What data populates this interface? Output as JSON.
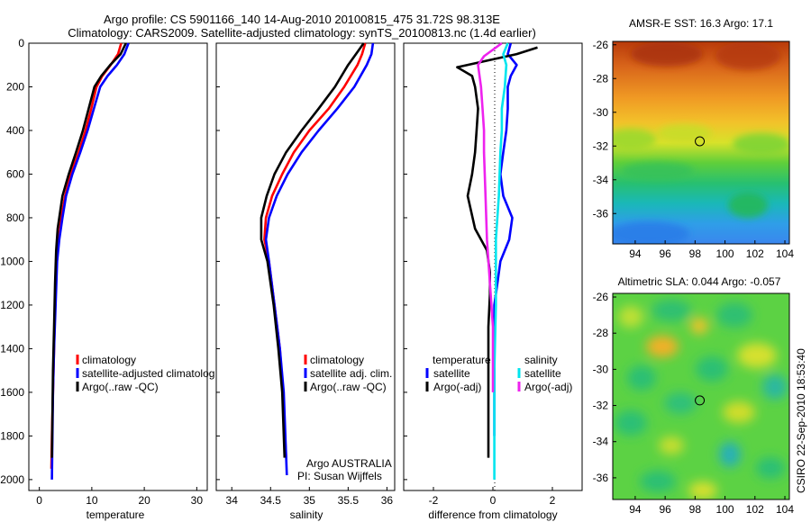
{
  "header": {
    "title_line1": "Argo profile: CS 5901166_140 14-Aug-2010 20100815_475 31.72S 98.313E",
    "title_line2": "Climatology: CARS2009. Satellite-adjusted climatology: synTS_20100813.nc (1.4d earlier)"
  },
  "colors": {
    "climatology": "#ff0000",
    "satellite": "#0000ff",
    "argo": "#000000",
    "salinity_satellite": "#00e5ee",
    "salinity_argo": "#ee22ee"
  },
  "chart_data": [
    {
      "type": "line",
      "name": "temperature-profile",
      "xlabel": "temperature",
      "ylabel": "",
      "xlim": [
        -2,
        32
      ],
      "ylim": [
        2050,
        0
      ],
      "xticks": [
        0,
        10,
        20,
        30
      ],
      "yticks": [
        0,
        200,
        400,
        600,
        800,
        1000,
        1200,
        1400,
        1600,
        1800,
        2000
      ],
      "legend": [
        "climatology",
        "satellite-adjusted climatolog",
        "Argo(..raw -QC)"
      ],
      "series": [
        {
          "name": "climatology",
          "color": "#ff0000",
          "x": [
            15.6,
            15.0,
            13.6,
            12.0,
            10.9,
            9.9,
            8.8,
            7.5,
            6.0,
            4.9,
            4.2,
            3.7,
            3.3,
            3.0,
            2.8,
            2.6,
            2.4,
            2.3
          ],
          "y": [
            0,
            50,
            100,
            150,
            200,
            300,
            400,
            500,
            600,
            700,
            800,
            900,
            1000,
            1200,
            1400,
            1600,
            1800,
            1950
          ]
        },
        {
          "name": "satellite",
          "color": "#0000ff",
          "x": [
            17.0,
            16.2,
            14.8,
            13.0,
            11.6,
            10.4,
            9.2,
            7.8,
            6.3,
            5.1,
            4.4,
            3.8,
            3.4,
            3.1,
            2.8,
            2.6,
            2.5,
            2.4
          ],
          "y": [
            0,
            50,
            100,
            150,
            200,
            300,
            400,
            500,
            600,
            700,
            800,
            900,
            1000,
            1200,
            1400,
            1600,
            1800,
            2000
          ]
        },
        {
          "name": "argo",
          "color": "#000000",
          "x": [
            16.5,
            15.5,
            13.5,
            11.8,
            10.5,
            9.4,
            8.3,
            7.0,
            5.6,
            4.4,
            3.5,
            3.2,
            3.0,
            2.8,
            2.6,
            2.5,
            2.4
          ],
          "y": [
            0,
            50,
            100,
            150,
            200,
            300,
            400,
            500,
            600,
            700,
            850,
            950,
            1100,
            1300,
            1500,
            1700,
            1900
          ]
        }
      ]
    },
    {
      "type": "line",
      "name": "salinity-profile",
      "xlabel": "salinity",
      "ylabel": "",
      "xlim": [
        33.8,
        36.1
      ],
      "ylim": [
        2050,
        0
      ],
      "xticks": [
        34,
        34.5,
        35,
        35.5,
        36
      ],
      "legend": [
        "climatology",
        "satellite adj. clim.",
        "Argo(..raw -QC)"
      ],
      "annotation": [
        "Argo AUSTRALIA",
        "PI: Susan Wijffels"
      ],
      "series": [
        {
          "name": "climatology",
          "color": "#ff0000",
          "x": [
            35.72,
            35.68,
            35.62,
            35.45,
            35.25,
            35.0,
            34.8,
            34.65,
            34.52,
            34.44,
            34.42,
            34.48,
            34.55,
            34.62,
            34.66,
            34.7
          ],
          "y": [
            0,
            50,
            100,
            200,
            300,
            400,
            500,
            600,
            700,
            800,
            900,
            1000,
            1200,
            1400,
            1600,
            1900
          ]
        },
        {
          "name": "satellite",
          "color": "#0000ff",
          "x": [
            35.82,
            35.8,
            35.74,
            35.58,
            35.36,
            35.12,
            34.9,
            34.72,
            34.58,
            34.48,
            34.44,
            34.48,
            34.55,
            34.62,
            34.67,
            34.71
          ],
          "y": [
            0,
            50,
            100,
            200,
            300,
            400,
            500,
            600,
            700,
            800,
            900,
            1000,
            1200,
            1400,
            1600,
            1980
          ]
        },
        {
          "name": "argo",
          "color": "#000000",
          "x": [
            35.7,
            35.6,
            35.5,
            35.33,
            35.12,
            34.9,
            34.7,
            34.55,
            34.45,
            34.38,
            34.38,
            34.46,
            34.54,
            34.6,
            34.65,
            34.68
          ],
          "y": [
            0,
            50,
            100,
            200,
            300,
            400,
            500,
            600,
            700,
            800,
            900,
            1000,
            1200,
            1400,
            1600,
            1900
          ]
        }
      ]
    },
    {
      "type": "line",
      "name": "difference-profile",
      "xlabel": "difference from climatology",
      "ylabel": "",
      "xlim": [
        -3,
        3
      ],
      "ylim": [
        2050,
        0
      ],
      "xticks": [
        -2,
        0,
        2
      ],
      "legend_titles": [
        "temperature",
        "salinity"
      ],
      "legend": [
        "satellite",
        "Argo(-adj)",
        "satellite",
        "Argo(-adj)"
      ],
      "series": [
        {
          "name": "temperature satellite",
          "color": "#0000ff",
          "x": [
            0.6,
            0.5,
            0.8,
            0.6,
            0.5,
            0.5,
            0.45,
            0.35,
            0.25,
            0.35,
            0.65,
            0.55,
            0.25,
            0.15,
            0.05,
            0.05,
            0.05,
            0.05
          ],
          "y": [
            0,
            50,
            100,
            150,
            200,
            300,
            400,
            500,
            600,
            700,
            800,
            900,
            1000,
            1100,
            1200,
            1400,
            1600,
            1800
          ]
        },
        {
          "name": "temperature argo-adj",
          "color": "#000000",
          "x": [
            1.5,
            0.8,
            -1.2,
            -0.7,
            -0.6,
            -0.5,
            -0.55,
            -0.6,
            -0.7,
            -0.85,
            -0.6,
            -0.2,
            -0.1,
            -0.1,
            -0.15,
            -0.15,
            -0.15,
            -0.15
          ],
          "y": [
            20,
            50,
            110,
            150,
            200,
            300,
            400,
            500,
            600,
            700,
            850,
            950,
            1050,
            1150,
            1300,
            1500,
            1700,
            1900
          ]
        },
        {
          "name": "salinity satellite",
          "color": "#00e5ee",
          "x": [
            0.5,
            0.35,
            0.45,
            0.4,
            0.3,
            0.3,
            0.25,
            0.2,
            0.1,
            0.1,
            0.05,
            0.05
          ],
          "y": [
            0,
            50,
            100,
            200,
            300,
            400,
            500,
            700,
            900,
            1200,
            1500,
            2000
          ]
        },
        {
          "name": "salinity argo-adj",
          "color": "#ee22ee",
          "x": [
            0.3,
            -0.3,
            -0.5,
            -0.4,
            -0.35,
            -0.3,
            -0.3,
            -0.25,
            -0.2,
            -0.1,
            0.0,
            0.0
          ],
          "y": [
            0,
            60,
            100,
            200,
            300,
            400,
            500,
            700,
            900,
            1100,
            1300,
            1600
          ]
        }
      ]
    },
    {
      "type": "heatmap",
      "name": "amsr-sst-map",
      "title": "AMSR-E SST: 16.3 Argo: 17.1",
      "xlim": [
        92.5,
        104.3
      ],
      "ylim": [
        -37.8,
        -25.8
      ],
      "xticks": [
        94,
        96,
        98,
        100,
        102,
        104
      ],
      "yticks": [
        -26,
        -28,
        -30,
        -32,
        -34,
        -36
      ],
      "marker": {
        "lon": 98.313,
        "lat": -31.72
      }
    },
    {
      "type": "heatmap",
      "name": "altimetric-sla-map",
      "title": "Altimetric SLA: 0.044 Argo: -0.057",
      "xlim": [
        92.5,
        104.3
      ],
      "ylim": [
        -37.2,
        -25.8
      ],
      "xticks": [
        94,
        96,
        98,
        100,
        102,
        104
      ],
      "yticks": [
        -26,
        -28,
        -30,
        -32,
        -34,
        -36
      ],
      "marker": {
        "lon": 98.313,
        "lat": -31.72
      }
    }
  ],
  "footer": {
    "credit": "CSIRO 22-Sep-2010 18:53:40"
  }
}
